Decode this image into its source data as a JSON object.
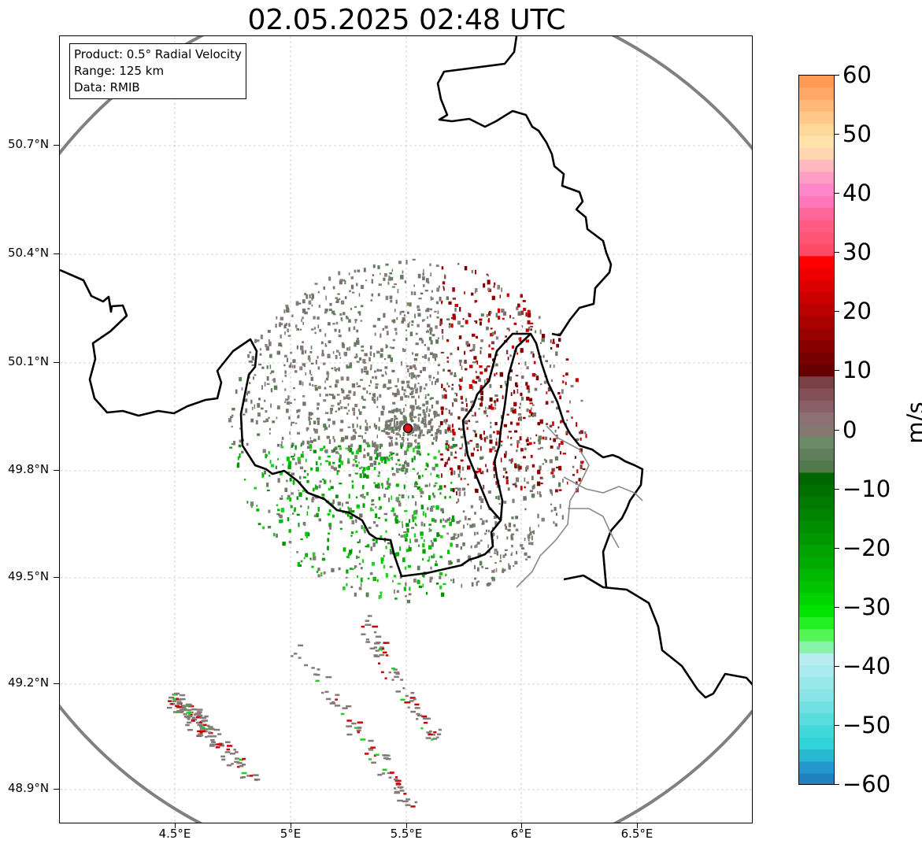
{
  "title": "02.05.2025 02:48 UTC",
  "info": {
    "product": "Product: 0.5° Radial Velocity",
    "range": "Range: 125 km",
    "data": "Data: RMIB"
  },
  "lat_ticks": [
    "50.7°N",
    "50.4°N",
    "50.1°N",
    "49.8°N",
    "49.5°N",
    "49.2°N",
    "48.9°N"
  ],
  "lon_ticks": [
    "4.5°E",
    "5°E",
    "5.5°E",
    "6°E",
    "6.5°E"
  ],
  "colorbar": {
    "unit": "m/s",
    "min": -60,
    "max": 60,
    "ticks": [
      "60",
      "50",
      "40",
      "30",
      "20",
      "10",
      "0",
      "−10",
      "−20",
      "−30",
      "−40",
      "−50",
      "−60"
    ],
    "colors_top_to_bottom": [
      "#ff9a55",
      "#ffa866",
      "#ffb877",
      "#ffc888",
      "#ffd799",
      "#ffe3a8",
      "#ffd6b0",
      "#ffb8c0",
      "#ff9dc5",
      "#ff88cc",
      "#ff77bb",
      "#ff6699",
      "#ff5c85",
      "#ff5575",
      "#ff4a65",
      "#ff0000",
      "#ee0000",
      "#dd0000",
      "#cc0000",
      "#bb0000",
      "#aa0000",
      "#990000",
      "#880000",
      "#770000",
      "#660000",
      "#7a4045",
      "#835058",
      "#8a6068",
      "#8c7074",
      "#857870",
      "#6a8a68",
      "#5e7e5c",
      "#4e7a4c",
      "#006600",
      "#007000",
      "#007a00",
      "#008400",
      "#008e00",
      "#009800",
      "#00a200",
      "#00ac00",
      "#00b800",
      "#00c400",
      "#00d400",
      "#00e400",
      "#22f022",
      "#55f555",
      "#88f2a8",
      "#b8ecf0",
      "#a8eaee",
      "#98e8ea",
      "#88e4e6",
      "#70e0e2",
      "#58dcde",
      "#40d8da",
      "#30d4d8",
      "#28b8d0",
      "#2498cc",
      "#2080c0"
    ]
  },
  "radar_site": {
    "name": "radar-site",
    "lon": 5.5,
    "lat": 49.91
  }
}
